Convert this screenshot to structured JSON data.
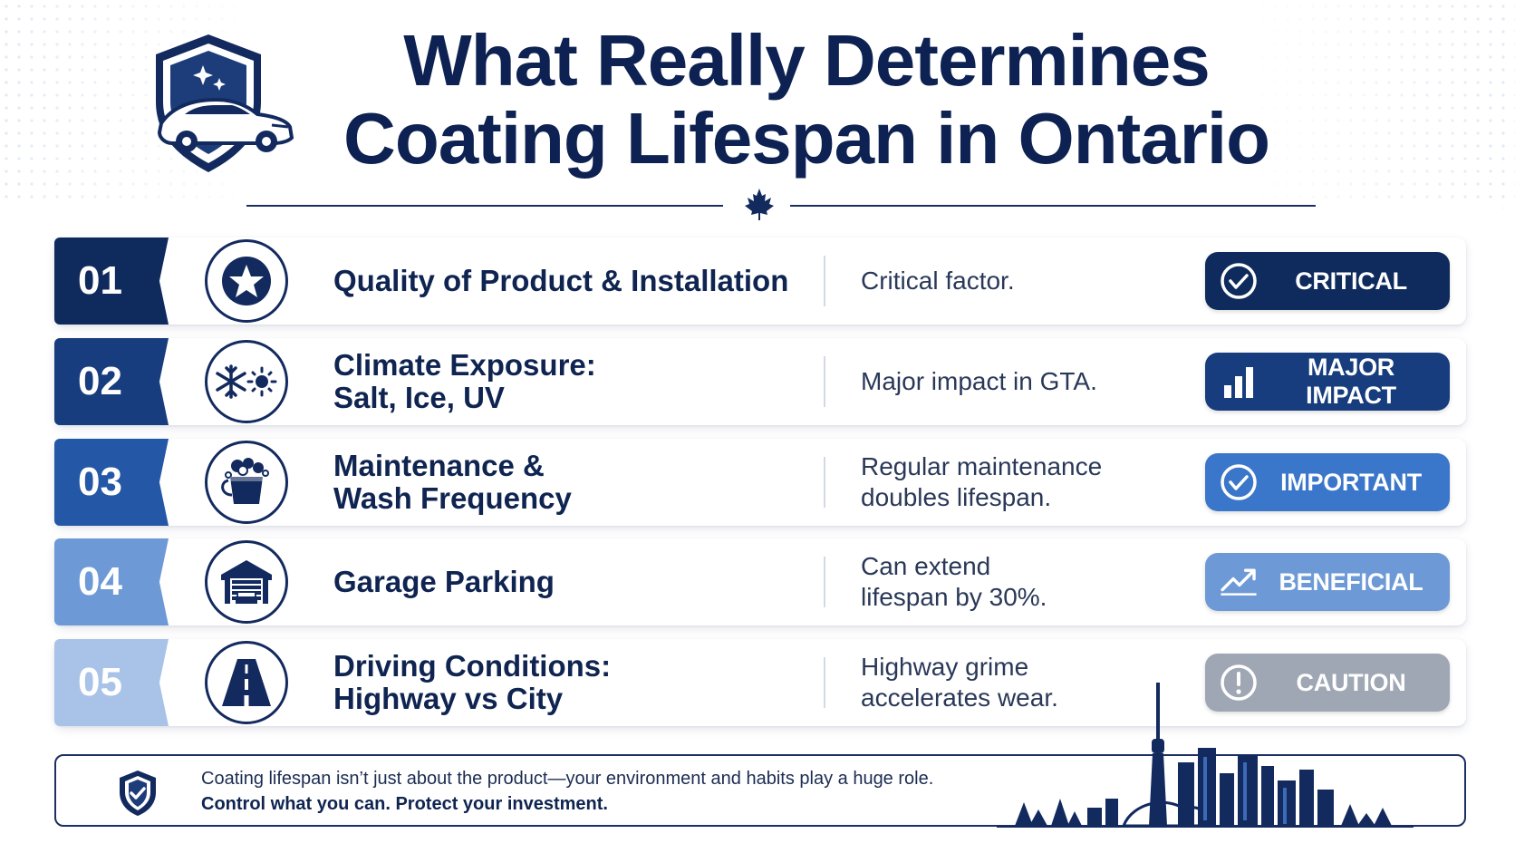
{
  "header": {
    "title_line1": "What Really Determines",
    "title_line2": "Coating Lifespan in Ontario"
  },
  "factors": [
    {
      "number": "01",
      "title_lines": [
        "Quality of Product & Installation"
      ],
      "note_lines": [
        "Critical factor."
      ],
      "badge": "CRITICAL",
      "icon": "star-icon",
      "badge_icon": "check-circle-icon",
      "color": "#0f2a5c"
    },
    {
      "number": "02",
      "title_lines": [
        "Climate Exposure:",
        "Salt, Ice, UV"
      ],
      "note_lines": [
        "Major impact in GTA."
      ],
      "badge": "MAJOR IMPACT",
      "icon": "snowflake-sun-icon",
      "badge_icon": "bar-chart-icon",
      "color": "#173d7e"
    },
    {
      "number": "03",
      "title_lines": [
        "Maintenance &",
        "Wash Frequency"
      ],
      "note_lines": [
        "Regular maintenance",
        "doubles lifespan."
      ],
      "badge": "IMPORTANT",
      "icon": "wash-bucket-icon",
      "badge_icon": "check-circle-icon",
      "color": "#3a76c9"
    },
    {
      "number": "04",
      "title_lines": [
        "Garage Parking"
      ],
      "note_lines": [
        "Can extend",
        "lifespan by 30%."
      ],
      "badge": "BENEFICIAL",
      "icon": "garage-icon",
      "badge_icon": "trend-up-icon",
      "color": "#6d9ad6"
    },
    {
      "number": "05",
      "title_lines": [
        "Driving Conditions:",
        "Highway vs City"
      ],
      "note_lines": [
        "Highway grime",
        "accelerates wear."
      ],
      "badge": "CAUTION",
      "icon": "road-icon",
      "badge_icon": "exclamation-circle-icon",
      "color": "#9fa7b4"
    }
  ],
  "number_colors": [
    "#0f2a5c",
    "#173d7e",
    "#2457a6",
    "#6d9ad6",
    "#a9c3e8"
  ],
  "footer": {
    "line1": "Coating lifespan isn’t just about the product—your environment and habits play a huge role.",
    "line2": "Control what you can. Protect your investment."
  },
  "graphics": {
    "logo": "shield-car-logo",
    "divider_icon": "maple-leaf-icon",
    "footer_icon": "shield-check-icon",
    "skyline": "toronto-skyline-illustration"
  }
}
